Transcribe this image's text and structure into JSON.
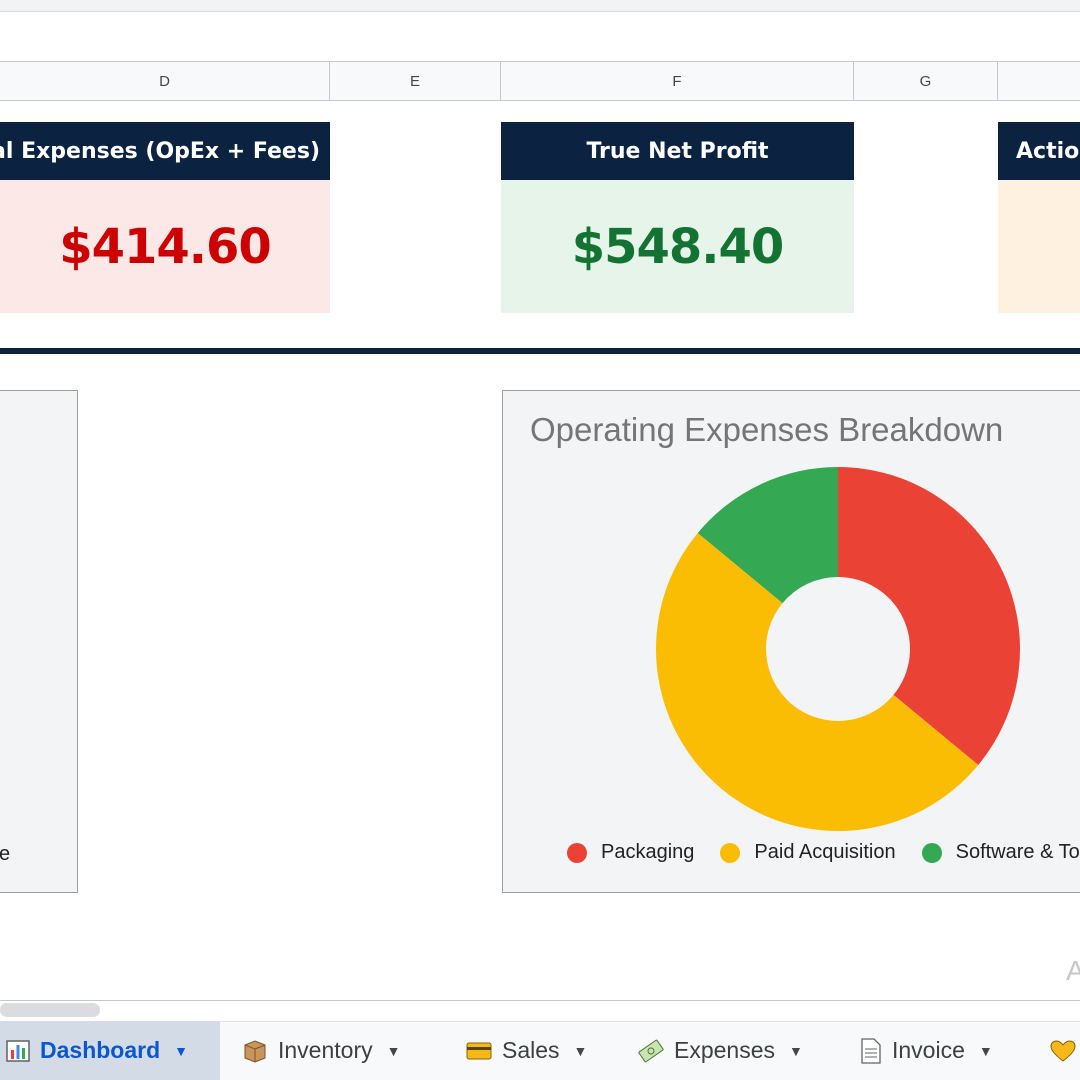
{
  "columns": [
    "D",
    "E",
    "F",
    "G"
  ],
  "cards": {
    "expenses": {
      "title": "al Expenses (OpEx + Fees)",
      "value": "$414.60",
      "value_color": "#cc0000",
      "bg": "#fce8e6"
    },
    "profit": {
      "title": "True Net Profit",
      "value": "$548.40",
      "value_color": "#137333",
      "bg": "#e6f4ea"
    },
    "action": {
      "title": "Actio",
      "bg": "#fef1e0"
    }
  },
  "left_chart": {
    "legend_cut": "e"
  },
  "right_chart": {
    "cut_text": "A"
  },
  "chart_data": {
    "type": "pie",
    "title": "Operating Expenses Breakdown",
    "donut": true,
    "categories": [
      "Packaging",
      "Paid Acquisition",
      "Software & To"
    ],
    "values": [
      36,
      50,
      14
    ],
    "colors": [
      "#ea4335",
      "#fbbc04",
      "#34a853"
    ],
    "legend_position": "bottom"
  },
  "tabs": [
    {
      "label": "Dashboard",
      "icon": "bar-chart-icon",
      "active": true
    },
    {
      "label": "Inventory",
      "icon": "package-icon",
      "active": false
    },
    {
      "label": "Sales",
      "icon": "credit-card-icon",
      "active": false
    },
    {
      "label": "Expenses",
      "icon": "money-icon",
      "active": false
    },
    {
      "label": "Invoice",
      "icon": "document-icon",
      "active": false
    }
  ]
}
